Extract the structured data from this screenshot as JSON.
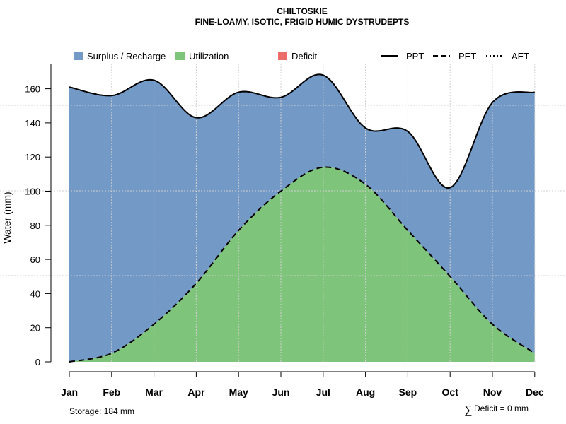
{
  "chart_data": {
    "type": "area",
    "title": "CHILTOSKIE",
    "subtitle": "FINE-LOAMY, ISOTIC, FRIGID HUMIC DYSTRUDEPTS",
    "ylabel": "Water (mm)",
    "xlabel": "",
    "ylim": [
      0,
      175
    ],
    "yticks": [
      0,
      20,
      40,
      60,
      80,
      100,
      120,
      140,
      160
    ],
    "categories": [
      "Jan",
      "Feb",
      "Mar",
      "Apr",
      "May",
      "Jun",
      "Jul",
      "Aug",
      "Sep",
      "Oct",
      "Nov",
      "Dec"
    ],
    "grid": true,
    "legend_position": "top",
    "legend": [
      {
        "label": "Surplus / Recharge",
        "kind": "box",
        "color": "#7399c6"
      },
      {
        "label": "Utilization",
        "kind": "box",
        "color": "#7fc47b"
      },
      {
        "label": "Deficit",
        "kind": "box",
        "color": "#ec6b6b"
      },
      {
        "label": "PPT",
        "kind": "line",
        "dash": "solid"
      },
      {
        "label": "PET",
        "kind": "line",
        "dash": "dashed"
      },
      {
        "label": "AET",
        "kind": "line",
        "dash": "dotted"
      }
    ],
    "series": [
      {
        "name": "PPT",
        "values": [
          161,
          156,
          165,
          143,
          158,
          155,
          168,
          137,
          135,
          102,
          152,
          158
        ]
      },
      {
        "name": "PET",
        "values": [
          0,
          5,
          22,
          46,
          77,
          100,
          114,
          104,
          77,
          50,
          22,
          5
        ]
      },
      {
        "name": "AET",
        "values": [
          0,
          5,
          22,
          46,
          77,
          100,
          114,
          104,
          77,
          50,
          22,
          5
        ]
      }
    ],
    "colors": {
      "surplus": "#7399c6",
      "utilization": "#7fc47b",
      "deficit": "#ec6b6b"
    }
  },
  "footer": {
    "storage": "Storage: 184 mm",
    "deficit_symbol": "∑",
    "deficit": "Deficit = 0 mm"
  }
}
